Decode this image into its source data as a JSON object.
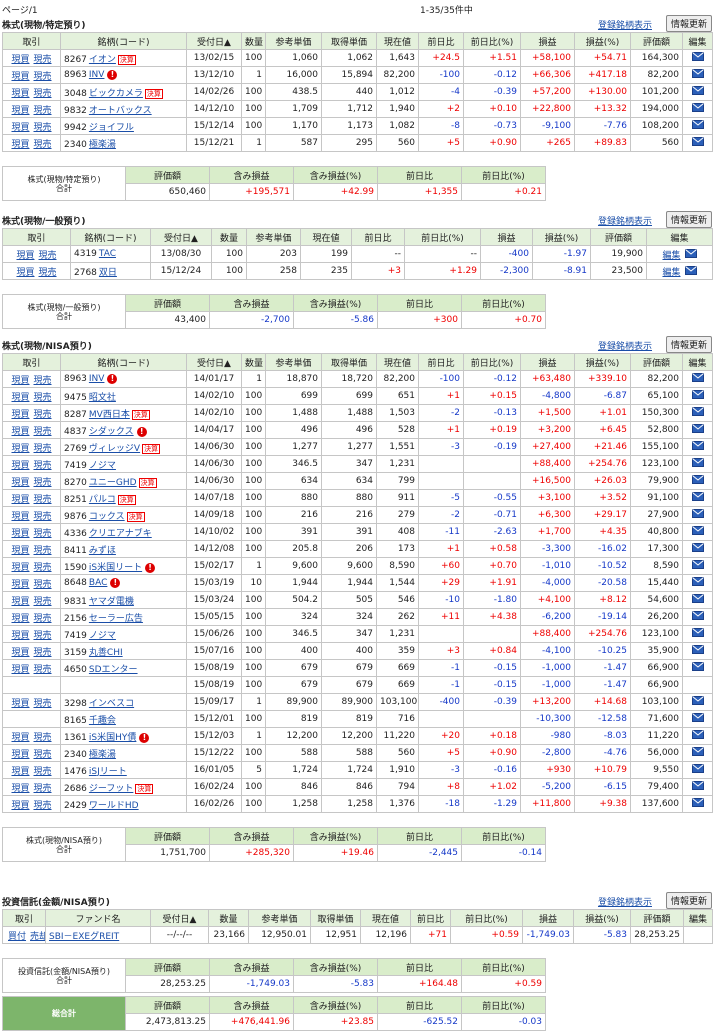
{
  "page": {
    "page_label": "ページ/1",
    "count": "1-35/35件中"
  },
  "sections": [
    {
      "title": "株式(現物/特定預り)",
      "link": "登録銘柄表示",
      "button": "情報更新",
      "trade_links": [
        "現買",
        "現売"
      ],
      "edit_icon": true,
      "headers": [
        "取引",
        "銘柄(コード)",
        "受付日▲",
        "数量",
        "参考単価",
        "取得単価",
        "現在値",
        "前日比",
        "前日比(%)",
        "損益",
        "損益(%)",
        "評価額",
        "編集"
      ],
      "rows": [
        {
          "code": "8267",
          "name": "イオン",
          "tag": "決算",
          "cells": [
            "13/02/15",
            "100",
            "1,060",
            "1,062",
            "1,643",
            "+24.5",
            "+1.51",
            "+58,100",
            "+54.71",
            "164,300"
          ]
        },
        {
          "code": "8963",
          "name": "INV",
          "tag": "!",
          "cells": [
            "13/12/10",
            "1",
            "16,000",
            "15,894",
            "82,200",
            "-100",
            "-0.12",
            "+66,306",
            "+417.18",
            "82,200"
          ]
        },
        {
          "code": "3048",
          "name": "ビックカメラ",
          "tag": "決算",
          "cells": [
            "14/02/26",
            "100",
            "438.5",
            "440",
            "1,012",
            "-4",
            "-0.39",
            "+57,200",
            "+130.00",
            "101,200"
          ]
        },
        {
          "code": "9832",
          "name": "オートバックス",
          "cells": [
            "14/12/10",
            "100",
            "1,709",
            "1,712",
            "1,940",
            "+2",
            "+0.10",
            "+22,800",
            "+13.32",
            "194,000"
          ]
        },
        {
          "code": "9942",
          "name": "ジョイフル",
          "cells": [
            "15/12/14",
            "100",
            "1,170",
            "1,173",
            "1,082",
            "-8",
            "-0.73",
            "-9,100",
            "-7.76",
            "108,200"
          ]
        },
        {
          "code": "2340",
          "name": "極楽湯",
          "cells": [
            "15/12/21",
            "1",
            "587",
            "295",
            "560",
            "+5",
            "+0.90",
            "+265",
            "+89.83",
            "560"
          ]
        }
      ],
      "summary": {
        "label": [
          "株式(現物/特定預り)",
          "合計"
        ],
        "headers": [
          "評価額",
          "含み損益",
          "含み損益(%)",
          "前日比",
          "前日比(%)"
        ],
        "values": [
          "650,460",
          "+195,571",
          "+42.99",
          "+1,355",
          "+0.21"
        ]
      }
    },
    {
      "title": "株式(現物/一般預り)",
      "link": "登録銘柄表示",
      "button": "情報更新",
      "trade_links": [
        "現買",
        "現売"
      ],
      "edit_icon": true,
      "edit_label": "編集",
      "headers": [
        "取引",
        "銘柄(コード)",
        "受付日▲",
        "数量",
        "参考単価",
        "現在値",
        "前日比",
        "前日比(%)",
        "損益",
        "損益(%)",
        "評価額",
        "編集"
      ],
      "rows": [
        {
          "code": "4319",
          "name": "TAC",
          "cells": [
            "13/08/30",
            "100",
            "203",
            "199",
            "--",
            "--",
            "-400",
            "-1.97",
            "19,900"
          ]
        },
        {
          "code": "2768",
          "name": "双日",
          "cells": [
            "15/12/24",
            "100",
            "258",
            "235",
            "+3",
            "+1.29",
            "-2,300",
            "-8.91",
            "23,500"
          ]
        }
      ],
      "summary": {
        "label": [
          "株式(現物/一般預り)",
          "合計"
        ],
        "headers": [
          "評価額",
          "含み損益",
          "含み損益(%)",
          "前日比",
          "前日比(%)"
        ],
        "values": [
          "43,400",
          "-2,700",
          "-5.86",
          "+300",
          "+0.70"
        ]
      }
    },
    {
      "title": "株式(現物/NISA預り)",
      "link": "登録銘柄表示",
      "button": "情報更新",
      "trade_links": [
        "現買",
        "現売"
      ],
      "edit_icon": true,
      "headers": [
        "取引",
        "銘柄(コード)",
        "受付日▲",
        "数量",
        "参考単価",
        "取得単価",
        "現在値",
        "前日比",
        "前日比(%)",
        "損益",
        "損益(%)",
        "評価額",
        "編集"
      ],
      "rows": [
        {
          "code": "8963",
          "name": "INV",
          "tag": "!",
          "cells": [
            "14/01/17",
            "1",
            "18,870",
            "18,720",
            "82,200",
            "-100",
            "-0.12",
            "+63,480",
            "+339.10",
            "82,200"
          ]
        },
        {
          "code": "9475",
          "name": "昭文社",
          "cells": [
            "14/02/10",
            "100",
            "699",
            "699",
            "651",
            "+1",
            "+0.15",
            "-4,800",
            "-6.87",
            "65,100"
          ]
        },
        {
          "code": "8287",
          "name": "MV西日本",
          "tag": "決算",
          "cells": [
            "14/02/10",
            "100",
            "1,488",
            "1,488",
            "1,503",
            "-2",
            "-0.13",
            "+1,500",
            "+1.01",
            "150,300"
          ]
        },
        {
          "code": "4837",
          "name": "シダックス",
          "tag": "!",
          "cells": [
            "14/04/17",
            "100",
            "496",
            "496",
            "528",
            "+1",
            "+0.19",
            "+3,200",
            "+6.45",
            "52,800"
          ]
        },
        {
          "code": "2769",
          "name": "ヴィレッジV",
          "tag": "決算",
          "cells": [
            "14/06/30",
            "100",
            "1,277",
            "1,277",
            "1,551",
            "-3",
            "-0.19",
            "+27,400",
            "+21.46",
            "155,100"
          ]
        },
        {
          "code": "7419",
          "name": "ノジマ",
          "cells": [
            "14/06/30",
            "100",
            "346.5",
            "347",
            "1,231",
            null,
            null,
            "+88,400",
            "+254.76",
            "123,100"
          ]
        },
        {
          "code": "8270",
          "name": "ユニーGHD",
          "tag": "決算",
          "cells": [
            "14/06/30",
            "100",
            "634",
            "634",
            "799",
            null,
            null,
            "+16,500",
            "+26.03",
            "79,900"
          ]
        },
        {
          "code": "8251",
          "name": "パルコ",
          "tag": "決算",
          "cells": [
            "14/07/18",
            "100",
            "880",
            "880",
            "911",
            "-5",
            "-0.55",
            "+3,100",
            "+3.52",
            "91,100"
          ]
        },
        {
          "code": "9876",
          "name": "コックス",
          "tag": "決算",
          "cells": [
            "14/09/18",
            "100",
            "216",
            "216",
            "279",
            "-2",
            "-0.71",
            "+6,300",
            "+29.17",
            "27,900"
          ]
        },
        {
          "code": "4336",
          "name": "クリエアナブキ",
          "cells": [
            "14/10/02",
            "100",
            "391",
            "391",
            "408",
            "-11",
            "-2.63",
            "+1,700",
            "+4.35",
            "40,800"
          ]
        },
        {
          "code": "8411",
          "name": "みずほ",
          "cells": [
            "14/12/08",
            "100",
            "205.8",
            "206",
            "173",
            "+1",
            "+0.58",
            "-3,300",
            "-16.02",
            "17,300"
          ]
        },
        {
          "code": "1590",
          "name": "iS米国リート",
          "tag": "!",
          "cells": [
            "15/02/17",
            "1",
            "9,600",
            "9,600",
            "8,590",
            "+60",
            "+0.70",
            "-1,010",
            "-10.52",
            "8,590"
          ]
        },
        {
          "code": "8648",
          "name": "BAC",
          "tag": "!",
          "cells": [
            "15/03/19",
            "10",
            "1,944",
            "1,944",
            "1,544",
            "+29",
            "+1.91",
            "-4,000",
            "-20.58",
            "15,440"
          ]
        },
        {
          "code": "9831",
          "name": "ヤマダ電機",
          "cells": [
            "15/03/24",
            "100",
            "504.2",
            "505",
            "546",
            "-10",
            "-1.80",
            "+4,100",
            "+8.12",
            "54,600"
          ]
        },
        {
          "code": "2156",
          "name": "セーラー広告",
          "cells": [
            "15/05/15",
            "100",
            "324",
            "324",
            "262",
            "+11",
            "+4.38",
            "-6,200",
            "-19.14",
            "26,200"
          ]
        },
        {
          "code": "7419",
          "name": "ノジマ",
          "cells": [
            "15/06/26",
            "100",
            "346.5",
            "347",
            "1,231",
            null,
            null,
            "+88,400",
            "+254.76",
            "123,100"
          ]
        },
        {
          "code": "3159",
          "name": "丸善CHI",
          "cells": [
            "15/07/16",
            "100",
            "400",
            "400",
            "359",
            "+3",
            "+0.84",
            "-4,100",
            "-10.25",
            "35,900"
          ]
        },
        {
          "code": "4650",
          "name": "SDエンター",
          "cells": [
            "15/08/19",
            "100",
            "679",
            "679",
            "669",
            "-1",
            "-0.15",
            "-1,000",
            "-1.47",
            "66,900"
          ]
        },
        {
          "cont": true,
          "cells": [
            "15/08/19",
            "100",
            "679",
            "679",
            "669",
            "-1",
            "-0.15",
            "-1,000",
            "-1.47",
            "66,900"
          ]
        },
        {
          "code": "3298",
          "name": "インベスコ",
          "cells": [
            "15/09/17",
            "1",
            "89,900",
            "89,900",
            "103,100",
            "-400",
            "-0.39",
            "+13,200",
            "+14.68",
            "103,100"
          ]
        },
        {
          "code": "8165",
          "name": "千趣会",
          "trade": false,
          "cells": [
            "15/12/01",
            "100",
            "819",
            "819",
            "716",
            null,
            null,
            "-10,300",
            "-12.58",
            "71,600"
          ]
        },
        {
          "code": "1361",
          "name": "iS米国HY債",
          "tag": "!",
          "cells": [
            "15/12/03",
            "1",
            "12,200",
            "12,200",
            "11,220",
            "+20",
            "+0.18",
            "-980",
            "-8.03",
            "11,220"
          ]
        },
        {
          "code": "2340",
          "name": "極楽湯",
          "cells": [
            "15/12/22",
            "100",
            "588",
            "588",
            "560",
            "+5",
            "+0.90",
            "-2,800",
            "-4.76",
            "56,000"
          ]
        },
        {
          "code": "1476",
          "name": "iSJリート",
          "cells": [
            "16/01/05",
            "5",
            "1,724",
            "1,724",
            "1,910",
            "-3",
            "-0.16",
            "+930",
            "+10.79",
            "9,550"
          ]
        },
        {
          "code": "2686",
          "name": "ジーフット",
          "tag": "決算",
          "cells": [
            "16/02/24",
            "100",
            "846",
            "846",
            "794",
            "+8",
            "+1.02",
            "-5,200",
            "-6.15",
            "79,400"
          ]
        },
        {
          "code": "2429",
          "name": "ワールドHD",
          "cells": [
            "16/02/26",
            "100",
            "1,258",
            "1,258",
            "1,376",
            "-18",
            "-1.29",
            "+11,800",
            "+9.38",
            "137,600"
          ]
        }
      ],
      "summary": {
        "label": [
          "株式(現物/NISA預り)",
          "合計"
        ],
        "headers": [
          "評価額",
          "含み損益",
          "含み損益(%)",
          "前日比",
          "前日比(%)"
        ],
        "values": [
          "1,751,700",
          "+285,320",
          "+19.46",
          "-2,445",
          "-0.14"
        ]
      }
    },
    {
      "title": "投資信託(金額/NISA預り)",
      "link": "登録銘柄表示",
      "button": "情報更新",
      "trade_links": [
        "買付",
        "売却"
      ],
      "edit_icon": false,
      "headers": [
        "取引",
        "ファンド名",
        "受付日▲",
        "数量",
        "参考単価",
        "取得単価",
        "現在値",
        "前日比",
        "前日比(%)",
        "損益",
        "損益(%)",
        "評価額",
        "編集"
      ],
      "rows": [
        {
          "name": "SBI－EXEグREIT",
          "cells": [
            "--/--/--",
            "23,166",
            "12,950.01",
            "12,951",
            "12,196",
            "+71",
            "+0.59",
            "-1,749.03",
            "-5.83",
            "28,253.25"
          ]
        }
      ],
      "summary": {
        "label": [
          "投資信託(金額/NISA預り)",
          "合計"
        ],
        "headers": [
          "評価額",
          "含み損益",
          "含み損益(%)",
          "前日比",
          "前日比(%)"
        ],
        "values": [
          "28,253.25",
          "-1,749.03",
          "-5.83",
          "+164.48",
          "+0.59"
        ]
      }
    }
  ],
  "total": {
    "label": "総合計",
    "headers": [
      "評価額",
      "含み損益",
      "含み損益(%)",
      "前日比",
      "前日比(%)"
    ],
    "values": [
      "2,473,813.25",
      "+476,441.96",
      "+23.85",
      "-625.52",
      "-0.03"
    ]
  }
}
